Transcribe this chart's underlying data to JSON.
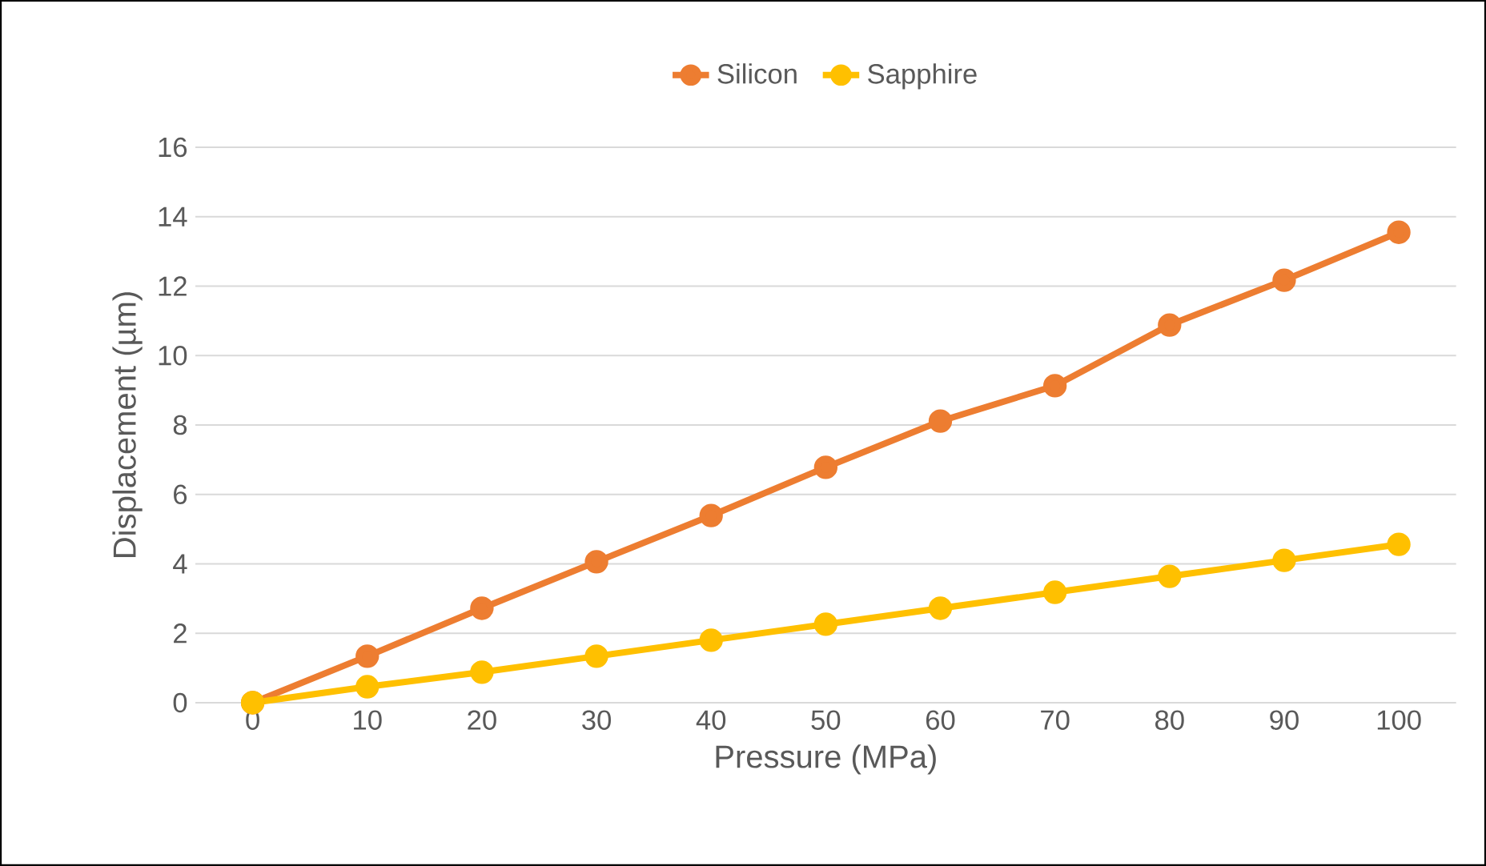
{
  "chart_data": {
    "type": "line",
    "xlabel": "Pressure (MPa)",
    "ylabel": "Displacement (µm)",
    "categories": [
      "0",
      "10",
      "20",
      "30",
      "40",
      "50",
      "60",
      "70",
      "80",
      "90",
      "100"
    ],
    "series": [
      {
        "name": "Silicon",
        "color": "#ed7d31",
        "values": [
          0,
          1.34,
          2.72,
          4.06,
          5.39,
          6.78,
          8.11,
          9.13,
          10.88,
          12.17,
          13.55
        ]
      },
      {
        "name": "Sapphire",
        "color": "#ffc000",
        "values": [
          0,
          0.46,
          0.88,
          1.34,
          1.8,
          2.26,
          2.72,
          3.18,
          3.64,
          4.1,
          4.56
        ]
      }
    ],
    "ylim": [
      0,
      16
    ],
    "yticks": [
      0,
      2,
      4,
      6,
      8,
      10,
      12,
      14,
      16
    ],
    "grid": "y",
    "legend": "top",
    "marker": "circle",
    "line_style": "solid"
  }
}
